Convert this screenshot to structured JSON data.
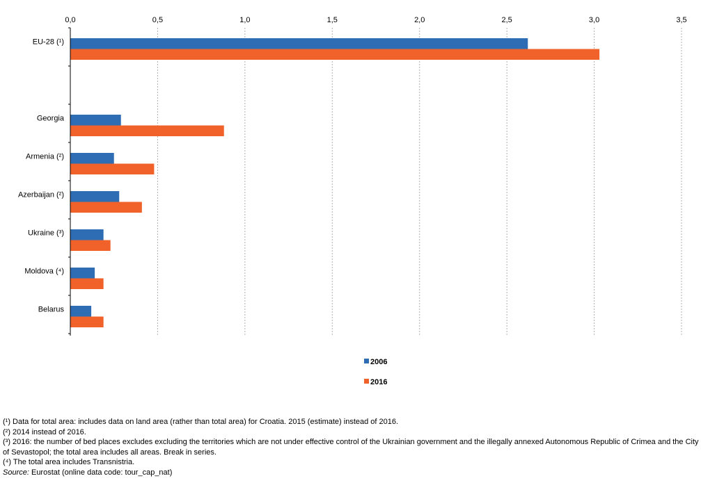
{
  "colors": {
    "series_2006": "#2e6db4",
    "series_2016": "#f0622a",
    "grid": "#b0b0b0",
    "axis": "#000000"
  },
  "legend": {
    "items": [
      {
        "label": "2006",
        "color": "#2e6db4"
      },
      {
        "label": "2016",
        "color": "#f0622a"
      }
    ]
  },
  "footnotes": {
    "note1": "(¹) Data for total area: includes data on land area (rather than total area) for Croatia. 2015 (estimate) instead of 2016.",
    "note2": "(²) 2014 instead of 2016.",
    "note3": "(³) 2016: the number of bed places excludes excluding the territories which are not under effective control of the Ukrainian government and the illegally annexed Autonomous Republic of Crimea and the City of Sevastopol; the total area includes all areas. Break in series.",
    "note4": "(⁴) The total area includes Transnistria.",
    "source_label": "Source:",
    "source_text": " Eurostat (online data code: tour_cap_nat)"
  },
  "chart_data": {
    "type": "bar",
    "orientation": "horizontal",
    "title": "",
    "xlabel": "",
    "ylabel": "",
    "xlim": [
      0,
      3.5
    ],
    "x_ticks": [
      "0,0",
      "0,5",
      "1,0",
      "1,5",
      "2,0",
      "2,5",
      "3,0",
      "3,5"
    ],
    "x_axis_position": "top",
    "grid": true,
    "legend_position": "bottom",
    "categories": [
      "EU-28 (¹)",
      "",
      "Georgia",
      "Armenia (²)",
      "Azerbaijan (²)",
      "Ukraine (³)",
      "Moldova (⁴)",
      "Belarus"
    ],
    "series": [
      {
        "name": "2006",
        "values": [
          2.62,
          null,
          0.29,
          0.25,
          0.28,
          0.19,
          0.14,
          0.12
        ]
      },
      {
        "name": "2016",
        "values": [
          3.03,
          null,
          0.88,
          0.48,
          0.41,
          0.23,
          0.19,
          0.19
        ]
      }
    ]
  }
}
